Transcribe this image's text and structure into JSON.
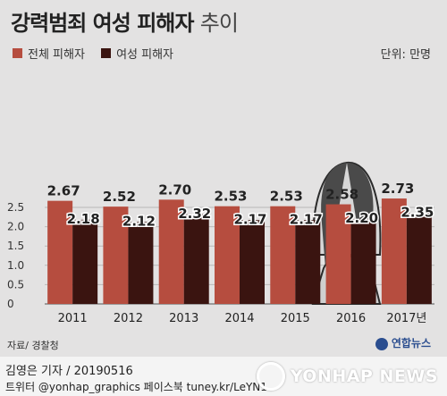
{
  "title": {
    "main": "강력범죄 여성 피해자",
    "suffix": "추이"
  },
  "unit": "단위: 만명",
  "source": "자료/ 경찰청",
  "logo": "연합뉴스",
  "credit": {
    "line1": "김영은 기자 / 20190516",
    "line2": "트위터 @yonhap_graphics  페이스북 tuney.kr/LeYN1"
  },
  "watermark": "YONHAP NEWS",
  "colors": {
    "total": "#b64d3f",
    "female": "#3a1410",
    "background": "#e3e2e2"
  },
  "icons": {
    "illustration": "woman-silhouette-icon"
  },
  "chart_data": {
    "type": "bar",
    "title": "강력범죄 여성 피해자 추이",
    "categories": [
      "2011",
      "2012",
      "2013",
      "2014",
      "2015",
      "2016",
      "2017년"
    ],
    "series": [
      {
        "name": "전체 피해자",
        "values": [
          2.67,
          2.52,
          2.7,
          2.53,
          2.53,
          2.58,
          2.73
        ],
        "labels": [
          "2.67",
          "2.52",
          "2.70",
          "2.53",
          "2.53",
          "2.58",
          "2.73"
        ]
      },
      {
        "name": "여성 피해자",
        "values": [
          2.18,
          2.12,
          2.32,
          2.17,
          2.17,
          2.2,
          2.35
        ],
        "labels": [
          "2.18",
          "2.12",
          "2.32",
          "2.17",
          "2.17",
          "2.20",
          "2.35"
        ]
      }
    ],
    "yticks": [
      "0",
      "0.5",
      "1.0",
      "1.5",
      "2.0",
      "2.5"
    ],
    "ylim": [
      0,
      2.8
    ],
    "ylabel": "",
    "xlabel": "",
    "grid": true,
    "legend": "top-left"
  }
}
